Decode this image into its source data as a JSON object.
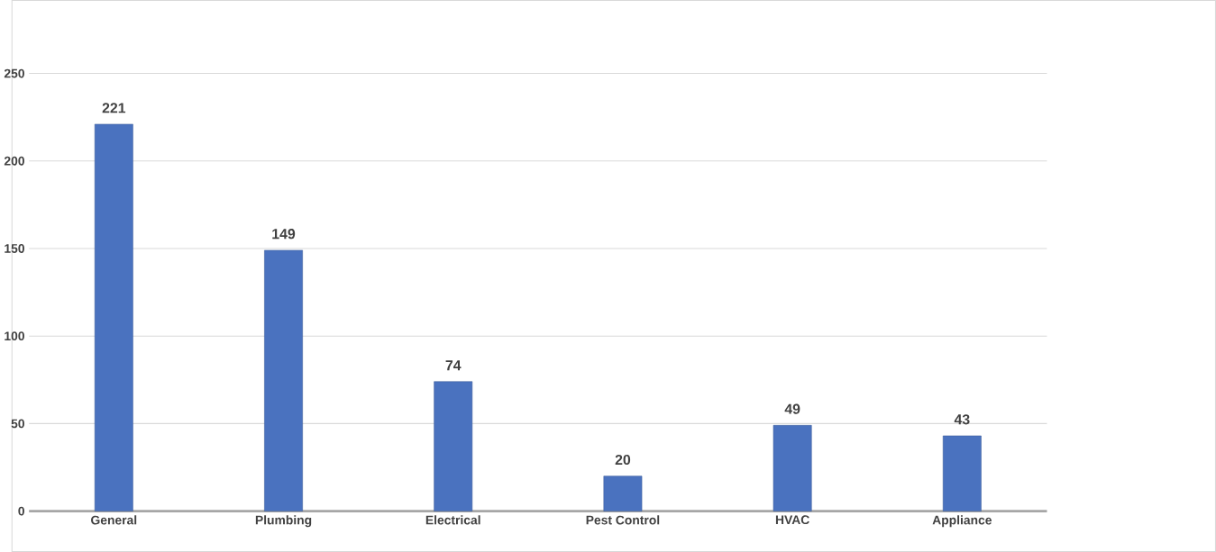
{
  "chart_data": {
    "type": "bar",
    "categories": [
      "General",
      "Plumbing",
      "Electrical",
      "Pest Control",
      "HVAC",
      "Appliance"
    ],
    "values": [
      221,
      149,
      74,
      20,
      49,
      43
    ],
    "color": "#4a72bf",
    "ylim": [
      0,
      250
    ],
    "yticks": [
      0,
      50,
      100,
      150,
      200,
      250
    ],
    "grid": "y",
    "data_labels": true
  }
}
